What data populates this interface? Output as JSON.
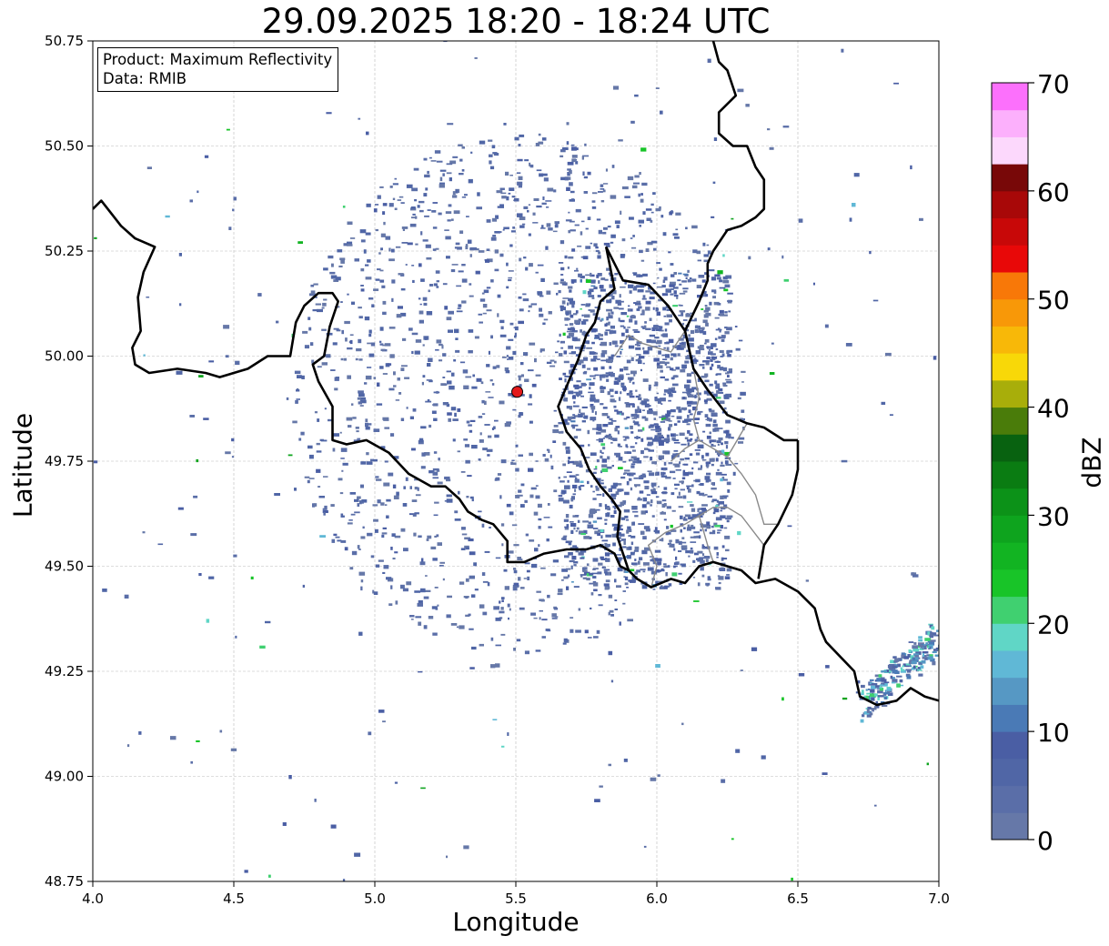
{
  "title": "29.09.2025 18:20 - 18:24 UTC",
  "info_box": {
    "product_line": "Product: Maximum Reflectivity",
    "data_line": "Data: RMIB"
  },
  "axes": {
    "xlabel": "Longitude",
    "ylabel": "Latitude",
    "xlim": [
      4.0,
      7.0
    ],
    "ylim": [
      48.75,
      50.75
    ],
    "xticks": [
      "4.0",
      "4.5",
      "5.0",
      "5.5",
      "6.0",
      "6.5",
      "7.0"
    ],
    "yticks": [
      "48.75",
      "49.00",
      "49.25",
      "49.50",
      "49.75",
      "50.00",
      "50.25",
      "50.50",
      "50.75"
    ],
    "grid": true
  },
  "radar_site": {
    "lon": 5.505,
    "lat": 49.915,
    "marker_color": "#e41a1c"
  },
  "colorbar": {
    "label": "dBZ",
    "tick_labels": [
      "0",
      "10",
      "20",
      "30",
      "40",
      "50",
      "60",
      "70"
    ],
    "range": [
      0,
      70
    ],
    "step": 2.5,
    "colors": [
      "#6678a8",
      "#5a6ea8",
      "#5066a6",
      "#4a5ea4",
      "#4a7ab6",
      "#5698c4",
      "#60b8d6",
      "#60d6c6",
      "#40d070",
      "#18c428",
      "#12b422",
      "#0ea41e",
      "#0c9218",
      "#0a7c12",
      "#086210",
      "#4a7c0a",
      "#a8ae0a",
      "#f8d808",
      "#f8b808",
      "#f89808",
      "#f87808",
      "#e80808",
      "#c80808",
      "#a80808",
      "#780808",
      "#fcd8fc",
      "#fcb0fc",
      "#fc70fc",
      "#f040f0"
    ]
  },
  "chart_data": {
    "type": "map",
    "title": "29.09.2025 18:20 - 18:24 UTC",
    "xlabel": "Longitude",
    "ylabel": "Latitude",
    "xlim": [
      4.0,
      7.0
    ],
    "ylim": [
      48.75,
      50.75
    ],
    "legend": "colorbar right, range 0-70 dBZ",
    "radar_site": [
      5.505,
      49.915
    ],
    "echo_regions": [
      {
        "area": "near-radar clutter ring",
        "center": [
          5.5,
          49.92
        ],
        "dBZ": "0-10"
      },
      {
        "area": "eastern band",
        "center": [
          6.0,
          49.85
        ],
        "dBZ": "0-15"
      },
      {
        "area": "south-east edge",
        "center": [
          6.9,
          49.25
        ],
        "dBZ": "5-25"
      }
    ],
    "borders": {
      "national": [
        [
          [
            4.0,
            50.35
          ],
          [
            4.03,
            50.37
          ],
          [
            4.1,
            50.31
          ],
          [
            4.15,
            50.28
          ],
          [
            4.22,
            50.26
          ],
          [
            4.18,
            50.2
          ],
          [
            4.16,
            50.14
          ],
          [
            4.17,
            50.06
          ],
          [
            4.14,
            50.02
          ],
          [
            4.15,
            49.98
          ],
          [
            4.2,
            49.96
          ],
          [
            4.3,
            49.97
          ],
          [
            4.4,
            49.96
          ],
          [
            4.45,
            49.95
          ],
          [
            4.55,
            49.97
          ],
          [
            4.62,
            50.0
          ],
          [
            4.7,
            50.0
          ],
          [
            4.72,
            50.08
          ],
          [
            4.75,
            50.12
          ],
          [
            4.8,
            50.15
          ],
          [
            4.85,
            50.15
          ],
          [
            4.87,
            50.13
          ],
          [
            4.84,
            50.07
          ],
          [
            4.82,
            50.0
          ],
          [
            4.78,
            49.98
          ],
          [
            4.8,
            49.94
          ],
          [
            4.85,
            49.88
          ],
          [
            4.85,
            49.8
          ],
          [
            4.9,
            49.79
          ],
          [
            4.97,
            49.8
          ],
          [
            5.05,
            49.77
          ],
          [
            5.12,
            49.72
          ],
          [
            5.2,
            49.69
          ],
          [
            5.25,
            49.69
          ],
          [
            5.3,
            49.66
          ],
          [
            5.33,
            49.63
          ],
          [
            5.38,
            49.61
          ],
          [
            5.42,
            49.6
          ],
          [
            5.47,
            49.56
          ],
          [
            5.47,
            49.51
          ],
          [
            5.53,
            49.51
          ],
          [
            5.6,
            49.53
          ],
          [
            5.68,
            49.54
          ],
          [
            5.75,
            49.54
          ],
          [
            5.8,
            49.55
          ],
          [
            5.85,
            49.53
          ],
          [
            5.87,
            49.5
          ],
          [
            5.9,
            49.49
          ],
          [
            5.93,
            49.47
          ],
          [
            5.98,
            49.45
          ],
          [
            6.05,
            49.47
          ],
          [
            6.1,
            49.46
          ],
          [
            6.15,
            49.5
          ],
          [
            6.2,
            49.51
          ],
          [
            6.3,
            49.49
          ],
          [
            6.35,
            49.46
          ],
          [
            6.42,
            49.47
          ],
          [
            6.5,
            49.44
          ],
          [
            6.56,
            49.4
          ],
          [
            6.58,
            49.35
          ],
          [
            6.6,
            49.32
          ],
          [
            6.7,
            49.25
          ],
          [
            6.72,
            49.19
          ],
          [
            6.78,
            49.17
          ],
          [
            6.85,
            49.18
          ],
          [
            6.9,
            49.21
          ],
          [
            6.95,
            49.19
          ],
          [
            7.0,
            49.18
          ]
        ],
        [
          [
            5.82,
            50.26
          ],
          [
            5.85,
            50.16
          ],
          [
            5.8,
            50.13
          ],
          [
            5.78,
            50.08
          ],
          [
            5.75,
            50.05
          ],
          [
            5.72,
            49.99
          ],
          [
            5.7,
            49.96
          ],
          [
            5.65,
            49.88
          ],
          [
            5.68,
            49.82
          ],
          [
            5.73,
            49.78
          ],
          [
            5.76,
            49.73
          ],
          [
            5.8,
            49.69
          ],
          [
            5.84,
            49.66
          ],
          [
            5.87,
            49.63
          ],
          [
            5.86,
            49.57
          ],
          [
            5.9,
            49.49
          ]
        ],
        [
          [
            6.5,
            49.8
          ],
          [
            6.45,
            49.8
          ],
          [
            6.38,
            49.83
          ],
          [
            6.32,
            49.84
          ],
          [
            6.25,
            49.86
          ],
          [
            6.18,
            49.92
          ],
          [
            6.13,
            49.97
          ],
          [
            6.1,
            50.06
          ],
          [
            6.04,
            50.12
          ],
          [
            5.97,
            50.17
          ],
          [
            5.88,
            50.18
          ],
          [
            5.82,
            50.26
          ]
        ],
        [
          [
            6.5,
            49.8
          ],
          [
            6.5,
            49.73
          ],
          [
            6.48,
            49.67
          ],
          [
            6.43,
            49.6
          ],
          [
            6.38,
            49.55
          ],
          [
            6.36,
            49.47
          ]
        ],
        [
          [
            6.2,
            50.75
          ],
          [
            6.22,
            50.7
          ],
          [
            6.25,
            50.68
          ],
          [
            6.28,
            50.62
          ],
          [
            6.22,
            50.58
          ],
          [
            6.22,
            50.53
          ],
          [
            6.27,
            50.5
          ],
          [
            6.32,
            50.5
          ],
          [
            6.35,
            50.45
          ],
          [
            6.38,
            50.42
          ],
          [
            6.38,
            50.35
          ],
          [
            6.35,
            50.33
          ],
          [
            6.3,
            50.31
          ],
          [
            6.25,
            50.3
          ],
          [
            6.2,
            50.25
          ],
          [
            6.18,
            50.22
          ],
          [
            6.18,
            50.18
          ],
          [
            6.15,
            50.13
          ],
          [
            6.1,
            50.06
          ]
        ]
      ],
      "regional": [
        [
          [
            5.85,
            50.0
          ],
          [
            5.9,
            50.05
          ],
          [
            5.95,
            50.03
          ],
          [
            6.0,
            50.02
          ],
          [
            6.05,
            50.01
          ],
          [
            6.1,
            50.06
          ]
        ],
        [
          [
            6.05,
            49.75
          ],
          [
            6.1,
            49.78
          ],
          [
            6.15,
            49.8
          ],
          [
            6.2,
            49.78
          ],
          [
            6.25,
            49.76
          ],
          [
            6.32,
            49.84
          ]
        ],
        [
          [
            6.13,
            49.97
          ],
          [
            6.15,
            49.9
          ],
          [
            6.13,
            49.85
          ],
          [
            6.15,
            49.8
          ]
        ],
        [
          [
            6.25,
            49.76
          ],
          [
            6.3,
            49.72
          ],
          [
            6.35,
            49.67
          ],
          [
            6.38,
            49.6
          ],
          [
            6.43,
            49.6
          ]
        ],
        [
          [
            5.98,
            49.45
          ],
          [
            6.0,
            49.5
          ],
          [
            5.97,
            49.55
          ],
          [
            6.03,
            49.58
          ],
          [
            6.1,
            49.6
          ],
          [
            6.15,
            49.62
          ],
          [
            6.2,
            49.64
          ],
          [
            6.25,
            49.64
          ],
          [
            6.3,
            49.62
          ],
          [
            6.38,
            49.55
          ]
        ],
        [
          [
            6.15,
            49.62
          ],
          [
            6.18,
            49.55
          ],
          [
            6.2,
            49.51
          ]
        ]
      ]
    }
  }
}
